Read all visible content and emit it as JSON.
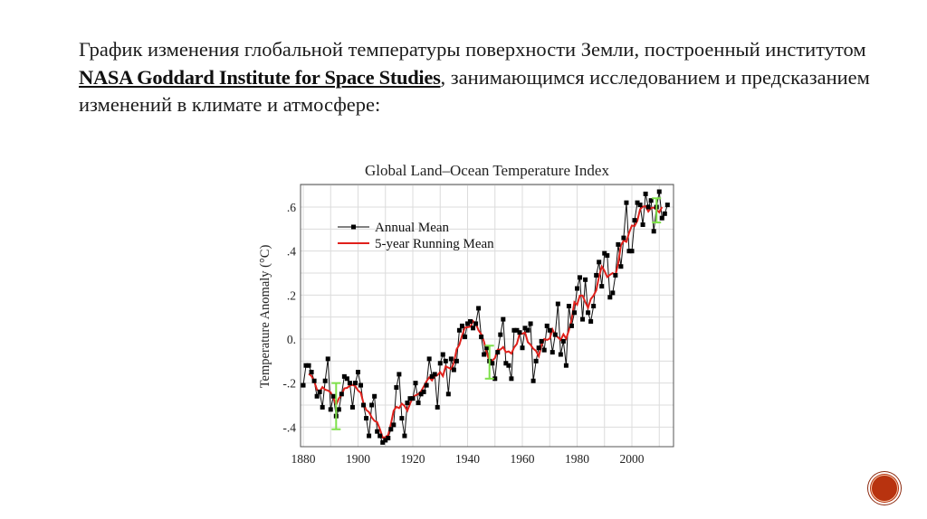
{
  "slide": {
    "text_before_link": "График изменения глобальной температуры поверхности Земли, построенный институтом ",
    "link_text": "NASA Goddard Institute for Space Studies",
    "text_after_link": ", занимающимся исследованием и предсказанием изменений в климате и атмосфере:"
  },
  "chart_data": {
    "type": "line",
    "title": "Global Land–Ocean Temperature Index",
    "xlabel": "",
    "ylabel": "Temperature Anomaly (°C)",
    "xlim": [
      1880,
      2014
    ],
    "ylim": [
      -0.49,
      0.7
    ],
    "grid": true,
    "legend_position": "top-left",
    "x_ticks": [
      "1880",
      "1900",
      "1920",
      "1940",
      "1960",
      "1980",
      "2000"
    ],
    "y_ticks": [
      {
        "value": 0.6,
        "label": ".6"
      },
      {
        "value": 0.4,
        "label": ".4"
      },
      {
        "value": 0.2,
        "label": ".2"
      },
      {
        "value": 0,
        "label": "0."
      },
      {
        "value": -0.2,
        "label": "-.2"
      },
      {
        "value": -0.4,
        "label": "-.4"
      }
    ],
    "x_start": 1880,
    "series": [
      {
        "name": "Annual Mean",
        "color": "#000000",
        "marker": "square",
        "values": [
          -0.21,
          -0.12,
          -0.12,
          -0.15,
          -0.19,
          -0.26,
          -0.24,
          -0.31,
          -0.19,
          -0.09,
          -0.32,
          -0.26,
          -0.35,
          -0.32,
          -0.25,
          -0.17,
          -0.18,
          -0.2,
          -0.31,
          -0.2,
          -0.15,
          -0.21,
          -0.3,
          -0.36,
          -0.44,
          -0.3,
          -0.26,
          -0.42,
          -0.44,
          -0.47,
          -0.46,
          -0.45,
          -0.41,
          -0.39,
          -0.22,
          -0.16,
          -0.36,
          -0.44,
          -0.29,
          -0.27,
          -0.27,
          -0.2,
          -0.29,
          -0.25,
          -0.24,
          -0.21,
          -0.09,
          -0.17,
          -0.16,
          -0.31,
          -0.11,
          -0.07,
          -0.1,
          -0.25,
          -0.09,
          -0.14,
          -0.1,
          0.04,
          0.06,
          0.01,
          0.07,
          0.08,
          0.05,
          0.07,
          0.14,
          0.01,
          -0.07,
          -0.04,
          -0.1,
          -0.11,
          -0.18,
          -0.06,
          0.02,
          0.09,
          -0.11,
          -0.12,
          -0.18,
          0.04,
          0.04,
          0.03,
          -0.04,
          0.05,
          0.04,
          0.07,
          -0.19,
          -0.1,
          -0.04,
          -0.01,
          -0.05,
          0.06,
          0.04,
          -0.06,
          0.02,
          0.16,
          -0.07,
          -0.01,
          -0.12,
          0.15,
          0.06,
          0.12,
          0.23,
          0.28,
          0.09,
          0.27,
          0.12,
          0.08,
          0.15,
          0.29,
          0.35,
          0.24,
          0.39,
          0.38,
          0.19,
          0.21,
          0.29,
          0.43,
          0.33,
          0.46,
          0.62,
          0.4,
          0.4,
          0.54,
          0.62,
          0.61,
          0.52,
          0.66,
          0.6,
          0.63,
          0.49,
          0.6,
          0.67,
          0.55,
          0.57,
          0.61
        ]
      },
      {
        "name": "5-year Running Mean",
        "color": "#e0201b",
        "window": 5
      }
    ],
    "uncertainty_bars": [
      {
        "x": 1892,
        "low": -0.41,
        "high": -0.2,
        "color": "#7ee04a"
      },
      {
        "x": 1948,
        "low": -0.18,
        "high": -0.03,
        "color": "#7ee04a"
      },
      {
        "x": 2009,
        "low": 0.53,
        "high": 0.64,
        "color": "#7ee04a"
      }
    ]
  },
  "nav": {
    "icon": "circle-nav-button",
    "color": "#b8330f"
  }
}
